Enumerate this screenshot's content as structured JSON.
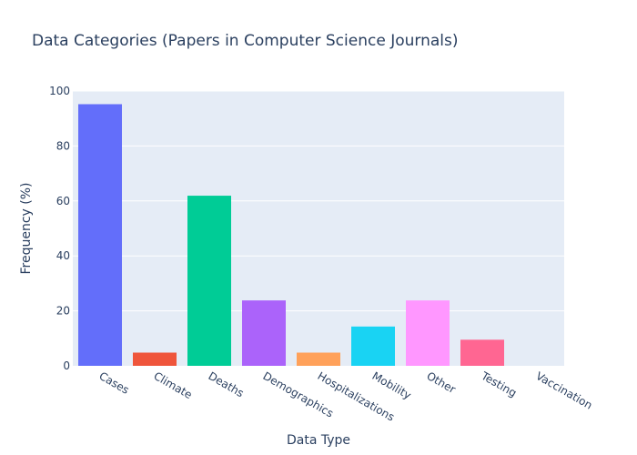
{
  "chart_data": {
    "type": "bar",
    "title": "Data Categories (Papers in Computer Science Journals)",
    "xlabel": "Data Type",
    "ylabel": "Frequency (%)",
    "categories": [
      "Cases",
      "Climate",
      "Deaths",
      "Demographics",
      "Hospitalizations",
      "Mobility",
      "Other",
      "Testing",
      "Vaccination"
    ],
    "values": [
      95.2,
      4.8,
      61.9,
      23.8,
      4.8,
      14.3,
      23.8,
      9.5,
      0
    ],
    "colors": [
      "#636efa",
      "#ef553b",
      "#00cc96",
      "#ab63fa",
      "#ffa15a",
      "#19d3f3",
      "#ff97ff",
      "#ff6692",
      "#b6e880"
    ],
    "ylim": [
      0,
      100
    ],
    "yticks": [
      0,
      20,
      40,
      60,
      80,
      100
    ],
    "ytick_labels": [
      "0",
      "20",
      "40",
      "60",
      "80",
      "100"
    ],
    "grid": true,
    "legend": "none",
    "background": "#e5ecf6"
  }
}
